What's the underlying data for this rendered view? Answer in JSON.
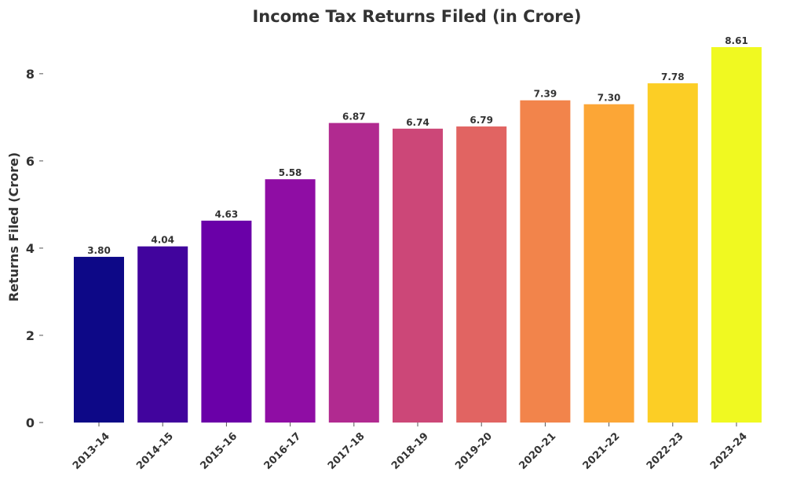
{
  "chart_data": {
    "type": "bar",
    "title": "Income Tax Returns Filed (in Crore)",
    "xlabel": "",
    "ylabel": "Returns Filed (Crore)",
    "ylim": [
      0,
      8.61
    ],
    "yticks": [
      0,
      2,
      4,
      6,
      8
    ],
    "grid": false,
    "categories": [
      "2013-14",
      "2014-15",
      "2015-16",
      "2016-17",
      "2017-18",
      "2018-19",
      "2019-20",
      "2020-21",
      "2021-22",
      "2022-23",
      "2023-24"
    ],
    "values": [
      3.8,
      4.04,
      4.63,
      5.58,
      6.87,
      6.74,
      6.79,
      7.39,
      7.3,
      7.78,
      8.61
    ],
    "value_labels": [
      "3.80",
      "4.04",
      "4.63",
      "5.58",
      "6.87",
      "6.74",
      "6.79",
      "7.39",
      "7.30",
      "7.78",
      "8.61"
    ],
    "colors": [
      "#0d0887",
      "#41049d",
      "#6a00a8",
      "#8f0da4",
      "#b12a90",
      "#cc4778",
      "#e16462",
      "#f2844b",
      "#fca636",
      "#fcce25",
      "#f0f921"
    ]
  }
}
